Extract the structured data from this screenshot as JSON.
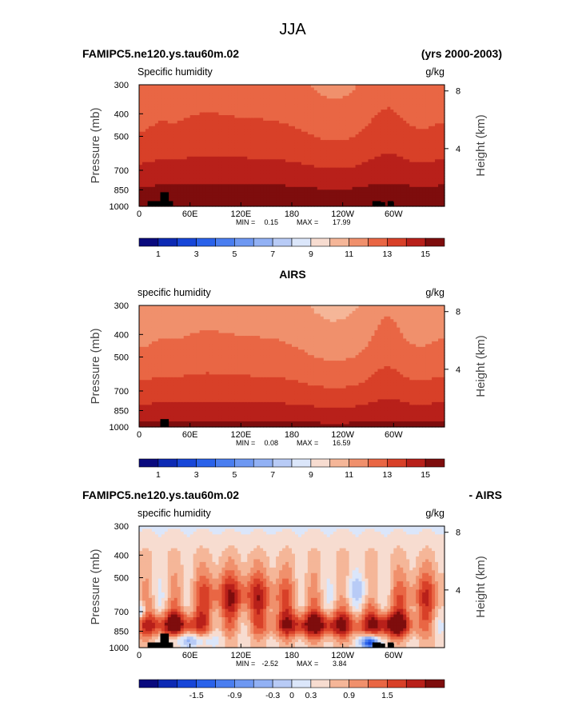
{
  "figure": {
    "title": "JJA"
  },
  "chart_data": [
    {
      "type": "heatmap",
      "header_left": "FAMIPC5.ne120.ys.tau60m.02",
      "header_right": "(yrs 2000-2003)",
      "field_label": "Specific humidity",
      "units": "g/kg",
      "ylabel": "Pressure (mb)",
      "ylabel_right": "Height (km)",
      "x_ticks": [
        "0",
        "60E",
        "120E",
        "180",
        "120W",
        "60W"
      ],
      "x_tick_lon": [
        0,
        60,
        120,
        180,
        240,
        300
      ],
      "xlim": [
        0,
        360
      ],
      "y_ticks": [
        "300",
        "400",
        "500",
        "700",
        "850",
        "1000"
      ],
      "y_tick_p": [
        300,
        400,
        500,
        700,
        850,
        1000
      ],
      "ylim": [
        1000,
        300
      ],
      "height_ticks": [
        "8",
        "4"
      ],
      "height_tick_km": [
        8,
        4
      ],
      "min_label": "MIN =",
      "min_value": "0.15",
      "max_label": "MAX =",
      "max_value": "17.99",
      "colorbar_labels": [
        "1",
        "3",
        "5",
        "7",
        "9",
        "11",
        "13",
        "15"
      ],
      "colorbar_levels": [
        1,
        3,
        5,
        7,
        9,
        11,
        13,
        15
      ],
      "colorbar_colors": [
        "#0a0a7e",
        "#0d2ab4",
        "#1746d8",
        "#2a62ea",
        "#4a7ef0",
        "#6e98f2",
        "#92b1f4",
        "#b8cbf6",
        "#dbe6fa",
        "#f7dcd0",
        "#f5b698",
        "#f0906c",
        "#e96644",
        "#d84028",
        "#b8201a",
        "#7e0d0d"
      ],
      "colorbar_min": 0,
      "colorbar_max": 16,
      "field_kind": "q_model",
      "terrain": [
        [
          10,
          30,
          950
        ],
        [
          25,
          35,
          870
        ],
        [
          30,
          40,
          950
        ],
        [
          275,
          285,
          950
        ],
        [
          285,
          290,
          960
        ],
        [
          293,
          300,
          950
        ]
      ]
    },
    {
      "type": "heatmap",
      "header_center": "AIRS",
      "field_label": "specific humidity",
      "units": "g/kg",
      "ylabel": "Pressure (mb)",
      "ylabel_right": "Height (km)",
      "x_ticks": [
        "0",
        "60E",
        "120E",
        "180",
        "120W",
        "60W"
      ],
      "x_tick_lon": [
        0,
        60,
        120,
        180,
        240,
        300
      ],
      "xlim": [
        0,
        360
      ],
      "y_ticks": [
        "300",
        "400",
        "500",
        "700",
        "850",
        "1000"
      ],
      "y_tick_p": [
        300,
        400,
        500,
        700,
        850,
        1000
      ],
      "ylim": [
        1000,
        300
      ],
      "height_ticks": [
        "8",
        "4"
      ],
      "height_tick_km": [
        8,
        4
      ],
      "min_label": "MIN =",
      "min_value": "0.08",
      "max_label": "MAX =",
      "max_value": "16.59",
      "colorbar_labels": [
        "1",
        "3",
        "5",
        "7",
        "9",
        "11",
        "13",
        "15"
      ],
      "colorbar_levels": [
        1,
        3,
        5,
        7,
        9,
        11,
        13,
        15
      ],
      "colorbar_colors": [
        "#0a0a7e",
        "#0d2ab4",
        "#1746d8",
        "#2a62ea",
        "#4a7ef0",
        "#6e98f2",
        "#92b1f4",
        "#b8cbf6",
        "#dbe6fa",
        "#f7dcd0",
        "#f5b698",
        "#f0906c",
        "#e96644",
        "#d84028",
        "#b8201a",
        "#7e0d0d"
      ],
      "colorbar_min": 0,
      "colorbar_max": 16,
      "field_kind": "q_obs",
      "terrain": [
        [
          25,
          35,
          925
        ]
      ]
    },
    {
      "type": "heatmap",
      "header_left": "FAMIPC5.ne120.ys.tau60m.02",
      "header_right": "- AIRS",
      "field_label": "specific humidity",
      "units": "g/kg",
      "ylabel": "Pressure (mb)",
      "ylabel_right": "Height (km)",
      "x_ticks": [
        "0",
        "60E",
        "120E",
        "180",
        "120W",
        "60W"
      ],
      "x_tick_lon": [
        0,
        60,
        120,
        180,
        240,
        300
      ],
      "xlim": [
        0,
        360
      ],
      "y_ticks": [
        "300",
        "400",
        "500",
        "700",
        "850",
        "1000"
      ],
      "y_tick_p": [
        300,
        400,
        500,
        700,
        850,
        1000
      ],
      "ylim": [
        1000,
        300
      ],
      "height_ticks": [
        "8",
        "4"
      ],
      "height_tick_km": [
        8,
        4
      ],
      "min_label": "MIN =",
      "min_value": "-2.52",
      "max_label": "MAX =",
      "max_value": "3.84",
      "colorbar_labels": [
        "-1.5",
        "-0.9",
        "-0.3",
        "0",
        "0.3",
        "0.9",
        "1.5"
      ],
      "colorbar_levels": [
        -1.5,
        -0.9,
        -0.3,
        0,
        0.3,
        0.9,
        1.5
      ],
      "colorbar_colors": [
        "#0a0a7e",
        "#0d2ab4",
        "#1746d8",
        "#2a62ea",
        "#4a7ef0",
        "#6e98f2",
        "#92b1f4",
        "#b8cbf6",
        "#dbe6fa",
        "#f7dcd0",
        "#f5b698",
        "#f0906c",
        "#e96644",
        "#d84028",
        "#b8201a",
        "#7e0d0d"
      ],
      "colorbar_min": -2.4,
      "colorbar_max": 2.4,
      "field_kind": "q_diff",
      "terrain": [
        [
          10,
          30,
          950
        ],
        [
          25,
          35,
          870
        ],
        [
          30,
          40,
          950
        ],
        [
          275,
          285,
          950
        ],
        [
          285,
          290,
          960
        ],
        [
          293,
          300,
          950
        ]
      ]
    }
  ]
}
